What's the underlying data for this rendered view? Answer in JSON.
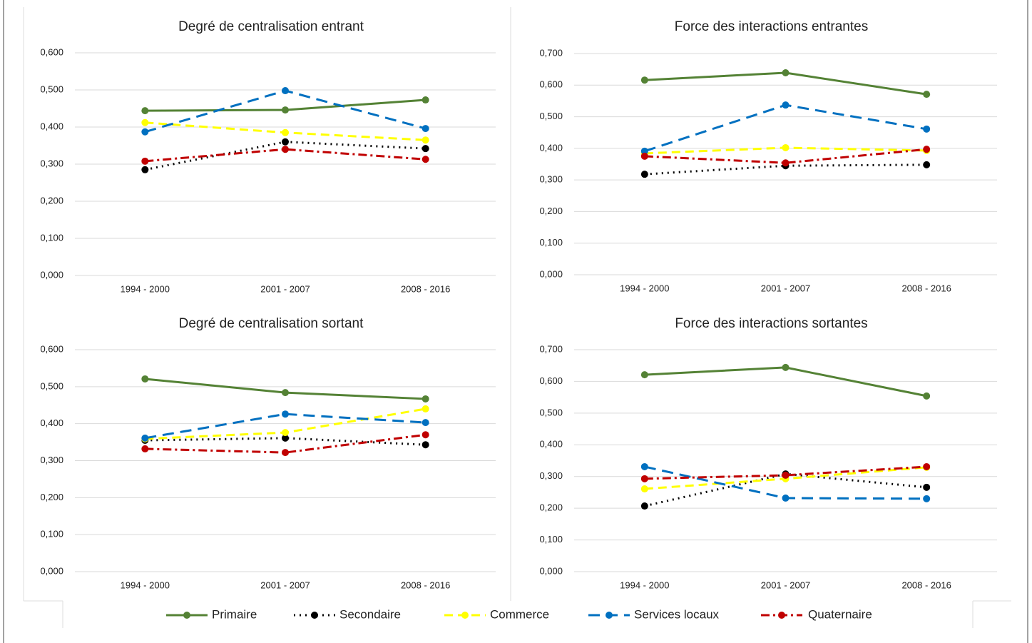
{
  "chart_data": [
    {
      "type": "line",
      "title": "Degré de centralisation entrant",
      "categories": [
        "1994 - 2000",
        "2001 - 2007",
        "2008 - 2016"
      ],
      "ylim": [
        0,
        0.6
      ],
      "yticks": [
        {
          "value": 0,
          "label": "0,000"
        },
        {
          "value": 0.1,
          "label": "0,100"
        },
        {
          "value": 0.2,
          "label": "0,200"
        },
        {
          "value": 0.3,
          "label": "0,300"
        },
        {
          "value": 0.4,
          "label": "0,400"
        },
        {
          "value": 0.5,
          "label": "0,500"
        },
        {
          "value": 0.6,
          "label": "0,600"
        }
      ],
      "grid": true,
      "series": [
        {
          "values": [
            0.444,
            0.446,
            0.473
          ]
        },
        {
          "values": [
            0.285,
            0.36,
            0.342
          ]
        },
        {
          "values": [
            0.412,
            0.385,
            0.365
          ]
        },
        {
          "values": [
            0.387,
            0.498,
            0.396
          ]
        },
        {
          "values": [
            0.308,
            0.34,
            0.313
          ]
        }
      ]
    },
    {
      "type": "line",
      "title": "Force des interactions entrantes",
      "categories": [
        "1994 - 2000",
        "2001 - 2007",
        "2008 - 2016"
      ],
      "ylim": [
        0,
        0.7
      ],
      "yticks": [
        {
          "value": 0,
          "label": "0,000"
        },
        {
          "value": 0.1,
          "label": "0,100"
        },
        {
          "value": 0.2,
          "label": "0,200"
        },
        {
          "value": 0.3,
          "label": "0,300"
        },
        {
          "value": 0.4,
          "label": "0,400"
        },
        {
          "value": 0.5,
          "label": "0,500"
        },
        {
          "value": 0.6,
          "label": "0,600"
        },
        {
          "value": 0.7,
          "label": "0,700"
        }
      ],
      "grid": true,
      "series": [
        {
          "values": [
            0.616,
            0.639,
            0.571
          ]
        },
        {
          "values": [
            0.318,
            0.345,
            0.348
          ]
        },
        {
          "values": [
            0.384,
            0.402,
            0.393
          ]
        },
        {
          "values": [
            0.391,
            0.537,
            0.461
          ]
        },
        {
          "values": [
            0.375,
            0.354,
            0.397
          ]
        }
      ]
    },
    {
      "type": "line",
      "title": "Degré de centralisation sortant",
      "categories": [
        "1994 - 2000",
        "2001 - 2007",
        "2008 - 2016"
      ],
      "ylim": [
        0,
        0.6
      ],
      "yticks": [
        {
          "value": 0,
          "label": "0,000"
        },
        {
          "value": 0.1,
          "label": "0,100"
        },
        {
          "value": 0.2,
          "label": "0,200"
        },
        {
          "value": 0.3,
          "label": "0,300"
        },
        {
          "value": 0.4,
          "label": "0,400"
        },
        {
          "value": 0.5,
          "label": "0,500"
        },
        {
          "value": 0.6,
          "label": "0,600"
        }
      ],
      "grid": true,
      "series": [
        {
          "values": [
            0.521,
            0.484,
            0.467
          ]
        },
        {
          "values": [
            0.355,
            0.361,
            0.343
          ]
        },
        {
          "values": [
            0.359,
            0.376,
            0.44
          ]
        },
        {
          "values": [
            0.361,
            0.426,
            0.403
          ]
        },
        {
          "values": [
            0.332,
            0.322,
            0.37
          ]
        }
      ]
    },
    {
      "type": "line",
      "title": "Force des interactions sortantes",
      "categories": [
        "1994 - 2000",
        "2001 - 2007",
        "2008 - 2016"
      ],
      "ylim": [
        0,
        0.7
      ],
      "yticks": [
        {
          "value": 0,
          "label": "0,000"
        },
        {
          "value": 0.1,
          "label": "0,100"
        },
        {
          "value": 0.2,
          "label": "0,200"
        },
        {
          "value": 0.3,
          "label": "0,300"
        },
        {
          "value": 0.4,
          "label": "0,400"
        },
        {
          "value": 0.5,
          "label": "0,500"
        },
        {
          "value": 0.6,
          "label": "0,600"
        },
        {
          "value": 0.7,
          "label": "0,700"
        }
      ],
      "grid": true,
      "series": [
        {
          "values": [
            0.621,
            0.644,
            0.554
          ]
        },
        {
          "values": [
            0.207,
            0.308,
            0.266
          ]
        },
        {
          "values": [
            0.261,
            0.293,
            0.329
          ]
        },
        {
          "values": [
            0.331,
            0.232,
            0.23
          ]
        },
        {
          "values": [
            0.293,
            0.304,
            0.331
          ]
        }
      ]
    }
  ],
  "legend": {
    "series": [
      {
        "name": "Primaire",
        "color": "#548235",
        "style": "solid"
      },
      {
        "name": "Secondaire",
        "color": "#000000",
        "style": "dotted"
      },
      {
        "name": "Commerce",
        "color": "#ffff00",
        "style": "dashed"
      },
      {
        "name": "Services locaux",
        "color": "#0070c0",
        "style": "long-dashed"
      },
      {
        "name": "Quaternaire",
        "color": "#c00000",
        "style": "dash-dot"
      }
    ]
  }
}
